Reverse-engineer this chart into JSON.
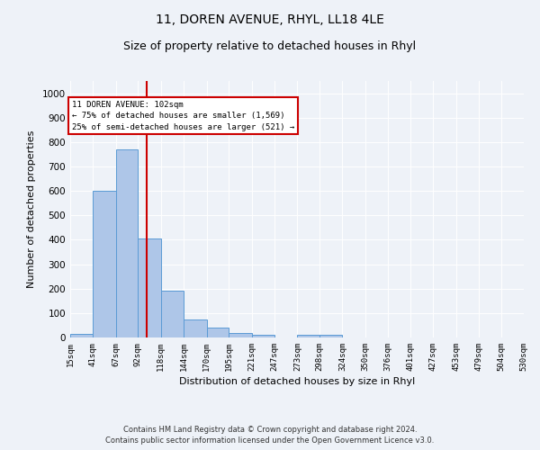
{
  "title1": "11, DOREN AVENUE, RHYL, LL18 4LE",
  "title2": "Size of property relative to detached houses in Rhyl",
  "xlabel": "Distribution of detached houses by size in Rhyl",
  "ylabel": "Number of detached properties",
  "bar_edges": [
    15,
    41,
    67,
    92,
    118,
    144,
    170,
    195,
    221,
    247,
    273,
    298,
    324,
    350,
    376,
    401,
    427,
    453,
    479,
    504,
    530
  ],
  "bar_heights": [
    15,
    600,
    770,
    405,
    190,
    75,
    40,
    18,
    12,
    0,
    10,
    10,
    0,
    0,
    0,
    0,
    0,
    0,
    0,
    0
  ],
  "bar_color": "#aec6e8",
  "bar_edgecolor": "#5b9bd5",
  "vline_x": 102,
  "vline_color": "#cc0000",
  "annotation_line1": "11 DOREN AVENUE: 102sqm",
  "annotation_line2": "← 75% of detached houses are smaller (1,569)",
  "annotation_line3": "25% of semi-detached houses are larger (521) →",
  "ylim": [
    0,
    1050
  ],
  "yticks": [
    0,
    100,
    200,
    300,
    400,
    500,
    600,
    700,
    800,
    900,
    1000
  ],
  "tick_labels": [
    "15sqm",
    "41sqm",
    "67sqm",
    "92sqm",
    "118sqm",
    "144sqm",
    "170sqm",
    "195sqm",
    "221sqm",
    "247sqm",
    "273sqm",
    "298sqm",
    "324sqm",
    "350sqm",
    "376sqm",
    "401sqm",
    "427sqm",
    "453sqm",
    "479sqm",
    "504sqm",
    "530sqm"
  ],
  "footer1": "Contains HM Land Registry data © Crown copyright and database right 2024.",
  "footer2": "Contains public sector information licensed under the Open Government Licence v3.0.",
  "bg_color": "#eef2f8",
  "grid_color": "#ffffff",
  "box_edgecolor": "#cc0000",
  "title1_fontsize": 10,
  "title2_fontsize": 9,
  "xlabel_fontsize": 8,
  "ylabel_fontsize": 8
}
